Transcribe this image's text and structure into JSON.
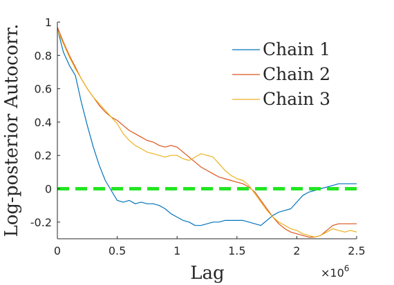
{
  "chart_data": {
    "type": "line",
    "xlabel": "Lag",
    "ylabel": "Log-posterior Autocorr.",
    "x_multiplier_label": "×10",
    "x_multiplier_exponent": "6",
    "xlim": [
      0,
      2.5
    ],
    "ylim": [
      -0.3,
      1.0
    ],
    "x_ticks": [
      0,
      0.5,
      1,
      1.5,
      2,
      2.5
    ],
    "x_tick_labels": [
      "0",
      "0.5",
      "1",
      "1.5",
      "2",
      "2.5"
    ],
    "y_ticks": [
      1,
      0.8,
      0.6,
      0.4,
      0.2,
      0,
      -0.2
    ],
    "y_tick_labels": [
      "1",
      "0.8",
      "0.6",
      "0.4",
      "0.2",
      "0",
      "-0.2"
    ],
    "legend_position": "top-right",
    "reference_line": {
      "y": 0,
      "style": "dashed",
      "color": "#22e622"
    },
    "series": [
      {
        "name": "Chain 1",
        "color": "#0072BD",
        "points": [
          [
            0,
            0.96
          ],
          [
            0.05,
            0.82
          ],
          [
            0.1,
            0.74
          ],
          [
            0.15,
            0.68
          ],
          [
            0.2,
            0.52
          ],
          [
            0.25,
            0.38
          ],
          [
            0.3,
            0.25
          ],
          [
            0.35,
            0.14
          ],
          [
            0.4,
            0.05
          ],
          [
            0.45,
            -0.01
          ],
          [
            0.5,
            -0.07
          ],
          [
            0.55,
            -0.08
          ],
          [
            0.6,
            -0.07
          ],
          [
            0.65,
            -0.09
          ],
          [
            0.7,
            -0.08
          ],
          [
            0.75,
            -0.09
          ],
          [
            0.8,
            -0.09
          ],
          [
            0.85,
            -0.1
          ],
          [
            0.9,
            -0.12
          ],
          [
            0.95,
            -0.15
          ],
          [
            1.0,
            -0.17
          ],
          [
            1.05,
            -0.19
          ],
          [
            1.1,
            -0.2
          ],
          [
            1.15,
            -0.22
          ],
          [
            1.2,
            -0.22
          ],
          [
            1.25,
            -0.21
          ],
          [
            1.3,
            -0.2
          ],
          [
            1.35,
            -0.2
          ],
          [
            1.4,
            -0.19
          ],
          [
            1.45,
            -0.19
          ],
          [
            1.5,
            -0.19
          ],
          [
            1.55,
            -0.19
          ],
          [
            1.6,
            -0.2
          ],
          [
            1.65,
            -0.21
          ],
          [
            1.7,
            -0.22
          ],
          [
            1.75,
            -0.19
          ],
          [
            1.8,
            -0.16
          ],
          [
            1.85,
            -0.14
          ],
          [
            1.9,
            -0.13
          ],
          [
            1.95,
            -0.12
          ],
          [
            2.0,
            -0.08
          ],
          [
            2.05,
            -0.04
          ],
          [
            2.1,
            -0.02
          ],
          [
            2.15,
            -0.01
          ],
          [
            2.2,
            0.0
          ],
          [
            2.25,
            0.01
          ],
          [
            2.3,
            0.02
          ],
          [
            2.35,
            0.03
          ],
          [
            2.4,
            0.03
          ],
          [
            2.45,
            0.03
          ],
          [
            2.5,
            0.03
          ]
        ]
      },
      {
        "name": "Chain 2",
        "color": "#D95319",
        "points": [
          [
            0,
            0.97
          ],
          [
            0.05,
            0.88
          ],
          [
            0.1,
            0.8
          ],
          [
            0.15,
            0.73
          ],
          [
            0.2,
            0.66
          ],
          [
            0.25,
            0.6
          ],
          [
            0.3,
            0.55
          ],
          [
            0.35,
            0.5
          ],
          [
            0.4,
            0.46
          ],
          [
            0.45,
            0.43
          ],
          [
            0.5,
            0.41
          ],
          [
            0.55,
            0.38
          ],
          [
            0.6,
            0.35
          ],
          [
            0.65,
            0.33
          ],
          [
            0.7,
            0.31
          ],
          [
            0.75,
            0.29
          ],
          [
            0.8,
            0.28
          ],
          [
            0.85,
            0.26
          ],
          [
            0.9,
            0.25
          ],
          [
            0.95,
            0.26
          ],
          [
            1.0,
            0.25
          ],
          [
            1.05,
            0.22
          ],
          [
            1.1,
            0.19
          ],
          [
            1.15,
            0.16
          ],
          [
            1.2,
            0.13
          ],
          [
            1.25,
            0.11
          ],
          [
            1.3,
            0.09
          ],
          [
            1.35,
            0.07
          ],
          [
            1.4,
            0.06
          ],
          [
            1.45,
            0.05
          ],
          [
            1.5,
            0.04
          ],
          [
            1.55,
            0.03
          ],
          [
            1.6,
            0.01
          ],
          [
            1.65,
            -0.02
          ],
          [
            1.7,
            -0.07
          ],
          [
            1.75,
            -0.12
          ],
          [
            1.8,
            -0.17
          ],
          [
            1.85,
            -0.21
          ],
          [
            1.9,
            -0.24
          ],
          [
            1.95,
            -0.26
          ],
          [
            2.0,
            -0.27
          ],
          [
            2.05,
            -0.28
          ],
          [
            2.1,
            -0.29
          ],
          [
            2.15,
            -0.29
          ],
          [
            2.2,
            -0.28
          ],
          [
            2.25,
            -0.25
          ],
          [
            2.3,
            -0.22
          ],
          [
            2.35,
            -0.21
          ],
          [
            2.4,
            -0.21
          ],
          [
            2.45,
            -0.21
          ],
          [
            2.5,
            -0.21
          ]
        ]
      },
      {
        "name": "Chain 3",
        "color": "#EDB120",
        "points": [
          [
            0,
            0.95
          ],
          [
            0.05,
            0.87
          ],
          [
            0.1,
            0.79
          ],
          [
            0.15,
            0.72
          ],
          [
            0.2,
            0.66
          ],
          [
            0.25,
            0.6
          ],
          [
            0.3,
            0.55
          ],
          [
            0.35,
            0.51
          ],
          [
            0.4,
            0.47
          ],
          [
            0.45,
            0.43
          ],
          [
            0.5,
            0.39
          ],
          [
            0.55,
            0.33
          ],
          [
            0.6,
            0.29
          ],
          [
            0.65,
            0.26
          ],
          [
            0.7,
            0.24
          ],
          [
            0.75,
            0.22
          ],
          [
            0.8,
            0.21
          ],
          [
            0.85,
            0.2
          ],
          [
            0.9,
            0.19
          ],
          [
            0.95,
            0.2
          ],
          [
            1.0,
            0.2
          ],
          [
            1.05,
            0.18
          ],
          [
            1.1,
            0.17
          ],
          [
            1.15,
            0.19
          ],
          [
            1.2,
            0.21
          ],
          [
            1.25,
            0.2
          ],
          [
            1.3,
            0.19
          ],
          [
            1.35,
            0.15
          ],
          [
            1.4,
            0.11
          ],
          [
            1.45,
            0.08
          ],
          [
            1.5,
            0.06
          ],
          [
            1.55,
            0.05
          ],
          [
            1.6,
            0.02
          ],
          [
            1.65,
            -0.03
          ],
          [
            1.7,
            -0.08
          ],
          [
            1.75,
            -0.13
          ],
          [
            1.8,
            -0.17
          ],
          [
            1.85,
            -0.2
          ],
          [
            1.9,
            -0.22
          ],
          [
            1.95,
            -0.24
          ],
          [
            2.0,
            -0.25
          ],
          [
            2.05,
            -0.27
          ],
          [
            2.1,
            -0.28
          ],
          [
            2.15,
            -0.29
          ],
          [
            2.2,
            -0.28
          ],
          [
            2.25,
            -0.26
          ],
          [
            2.3,
            -0.24
          ],
          [
            2.35,
            -0.25
          ],
          [
            2.4,
            -0.26
          ],
          [
            2.45,
            -0.25
          ],
          [
            2.5,
            -0.26
          ]
        ]
      }
    ]
  }
}
